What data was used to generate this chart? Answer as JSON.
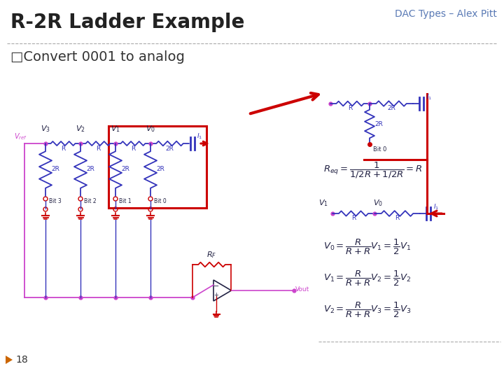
{
  "title_right": "DAC Types – Alex Pitt",
  "title_main": "R-2R Ladder Example",
  "subtitle": "□Convert 0001 to analog",
  "slide_bg": "#ffffff",
  "title_right_color": "#5a7ab5",
  "title_main_color": "#222222",
  "subtitle_color": "#333333",
  "page_number": "18",
  "blue": "#3333bb",
  "pink": "#cc44cc",
  "red": "#cc0000",
  "dark": "#222244"
}
